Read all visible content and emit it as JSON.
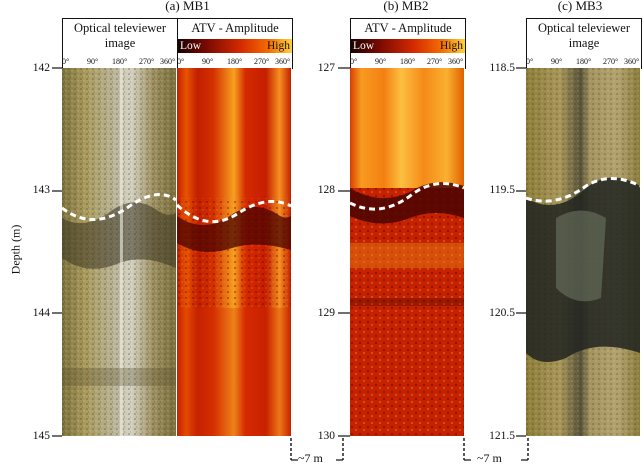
{
  "panels": [
    {
      "title": "(a) MB1"
    },
    {
      "title": "(b) MB2"
    },
    {
      "title": "(c) MB3"
    }
  ],
  "headers": {
    "optical": "Optical televiewer image",
    "atv": "ATV - Amplitude",
    "low": "Low",
    "high": "High"
  },
  "azimuth_ticks": [
    "0°",
    "90°",
    "180°",
    "270°",
    "360°"
  ],
  "depth_axis_label": "Depth (m)",
  "depths": {
    "mb1": [
      "142",
      "143",
      "144",
      "145"
    ],
    "mb2": [
      "127",
      "128",
      "129",
      "130"
    ],
    "mb3": [
      "118.5",
      "119.5",
      "120.5",
      "121.5"
    ]
  },
  "spacing_label": "~7 m",
  "colors": {
    "atv_low": "#1a0000",
    "atv_mid": "#d42a00",
    "atv_high": "#ffd23c",
    "boundary": "#ffffff"
  }
}
